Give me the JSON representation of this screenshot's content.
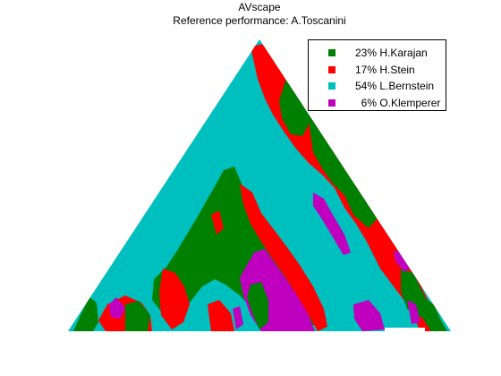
{
  "chart_data": {
    "type": "heatmap",
    "title": "AVscape",
    "subtitle": "Reference performance: A.Toscanini",
    "legend_position": "top-right",
    "series": [
      {
        "name": "H.Karajan",
        "value": 23,
        "color": "#008000"
      },
      {
        "name": "H.Stein",
        "value": 17,
        "color": "#ff0000"
      },
      {
        "name": "L.Bernstein",
        "value": 54,
        "color": "#00bfbf"
      },
      {
        "name": "O.Klemperer",
        "value": 6,
        "color": "#bf00bf"
      }
    ]
  },
  "legend": {
    "items": [
      {
        "label": "23% H.Karajan"
      },
      {
        "label": "17% H.Stein"
      },
      {
        "label": "54% L.Bernstein"
      },
      {
        "label": "  6% O.Klemperer"
      }
    ]
  }
}
